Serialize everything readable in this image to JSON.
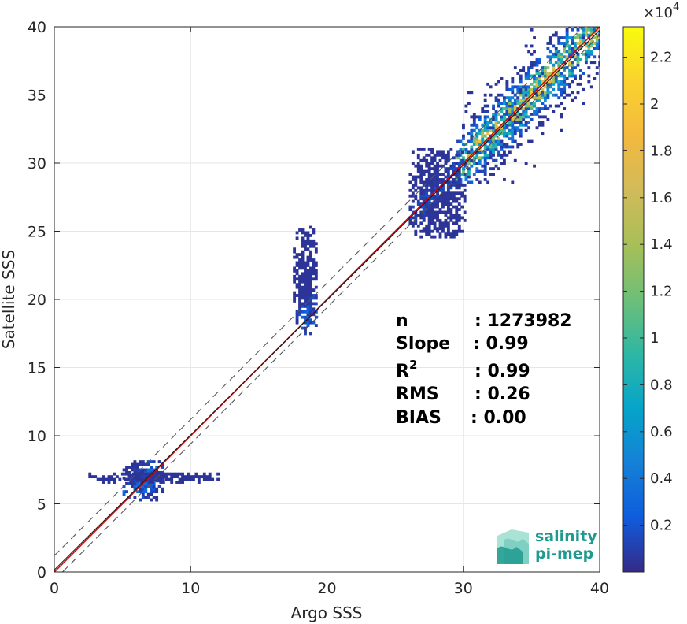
{
  "chart_data": {
    "type": "heatmap",
    "subtype": "2D density scatter",
    "xlabel": "Argo SSS",
    "ylabel": "Satellite SSS",
    "xlim": [
      0,
      40
    ],
    "ylim": [
      0,
      40
    ],
    "xticks": [
      "0",
      "10",
      "20",
      "30",
      "40"
    ],
    "yticks": [
      "0",
      "5",
      "10",
      "15",
      "20",
      "25",
      "30",
      "35",
      "40"
    ],
    "grid": true,
    "colormap": "parula",
    "colorbar": {
      "range": [
        0,
        23300
      ],
      "exponent_label": "×10",
      "exponent_power": "4",
      "tick_values": [
        0.2,
        0.4,
        0.6,
        0.8,
        1,
        1.2,
        1.4,
        1.6,
        1.8,
        2,
        2.2
      ],
      "tick_labels": [
        "0.2",
        "0.4",
        "0.6",
        "0.8",
        "1",
        "1.2",
        "1.4",
        "1.6",
        "1.8",
        "2",
        "2.2"
      ],
      "cmax": 2.33
    },
    "reference_lines": [
      {
        "kind": "one_to_one",
        "color": "#e00000",
        "style": "solid",
        "intercept": 0,
        "slope": 1
      },
      {
        "kind": "fit",
        "color": "#1a1a1a",
        "style": "solid",
        "intercept": 0.15,
        "slope": 0.99
      },
      {
        "kind": "offset",
        "color": "#555555",
        "style": "dashed",
        "intercept": 1.2,
        "slope": 1
      },
      {
        "kind": "offset",
        "color": "#555555",
        "style": "dashed",
        "intercept": -0.6,
        "slope": 1
      }
    ],
    "clusters": [
      {
        "x_range": [
          29.5,
          40
        ],
        "y_range": [
          28.5,
          40
        ],
        "peak": 0.9,
        "note": "main open-ocean cloud"
      },
      {
        "x_range": [
          17.5,
          19.2
        ],
        "y_range": [
          17.4,
          25.2
        ],
        "peak": 0.15
      },
      {
        "x_range": [
          5,
          8
        ],
        "y_range": [
          5.2,
          8.2
        ],
        "peak": 0.2
      },
      {
        "x_range": [
          2.5,
          12
        ],
        "y_range": [
          6.5,
          7.3
        ],
        "peak": 0.05
      },
      {
        "x_range": [
          26,
          30
        ],
        "y_range": [
          24.5,
          31
        ],
        "peak": 0.08
      }
    ],
    "stats": [
      {
        "label": "n",
        "value": ": 1273982"
      },
      {
        "label": "Slope",
        "value": ": 0.99"
      },
      {
        "label": "R",
        "sup": "2",
        "value": ": 0.99"
      },
      {
        "label": "RMS",
        "value": ": 0.26"
      },
      {
        "label": "BIAS",
        "value": ": 0.00"
      }
    ]
  },
  "logo": {
    "line1": "salinity",
    "line2": "pi-mep",
    "colors": [
      "#1f9a8e",
      "#7fd0c2",
      "#a9e3d6"
    ]
  }
}
